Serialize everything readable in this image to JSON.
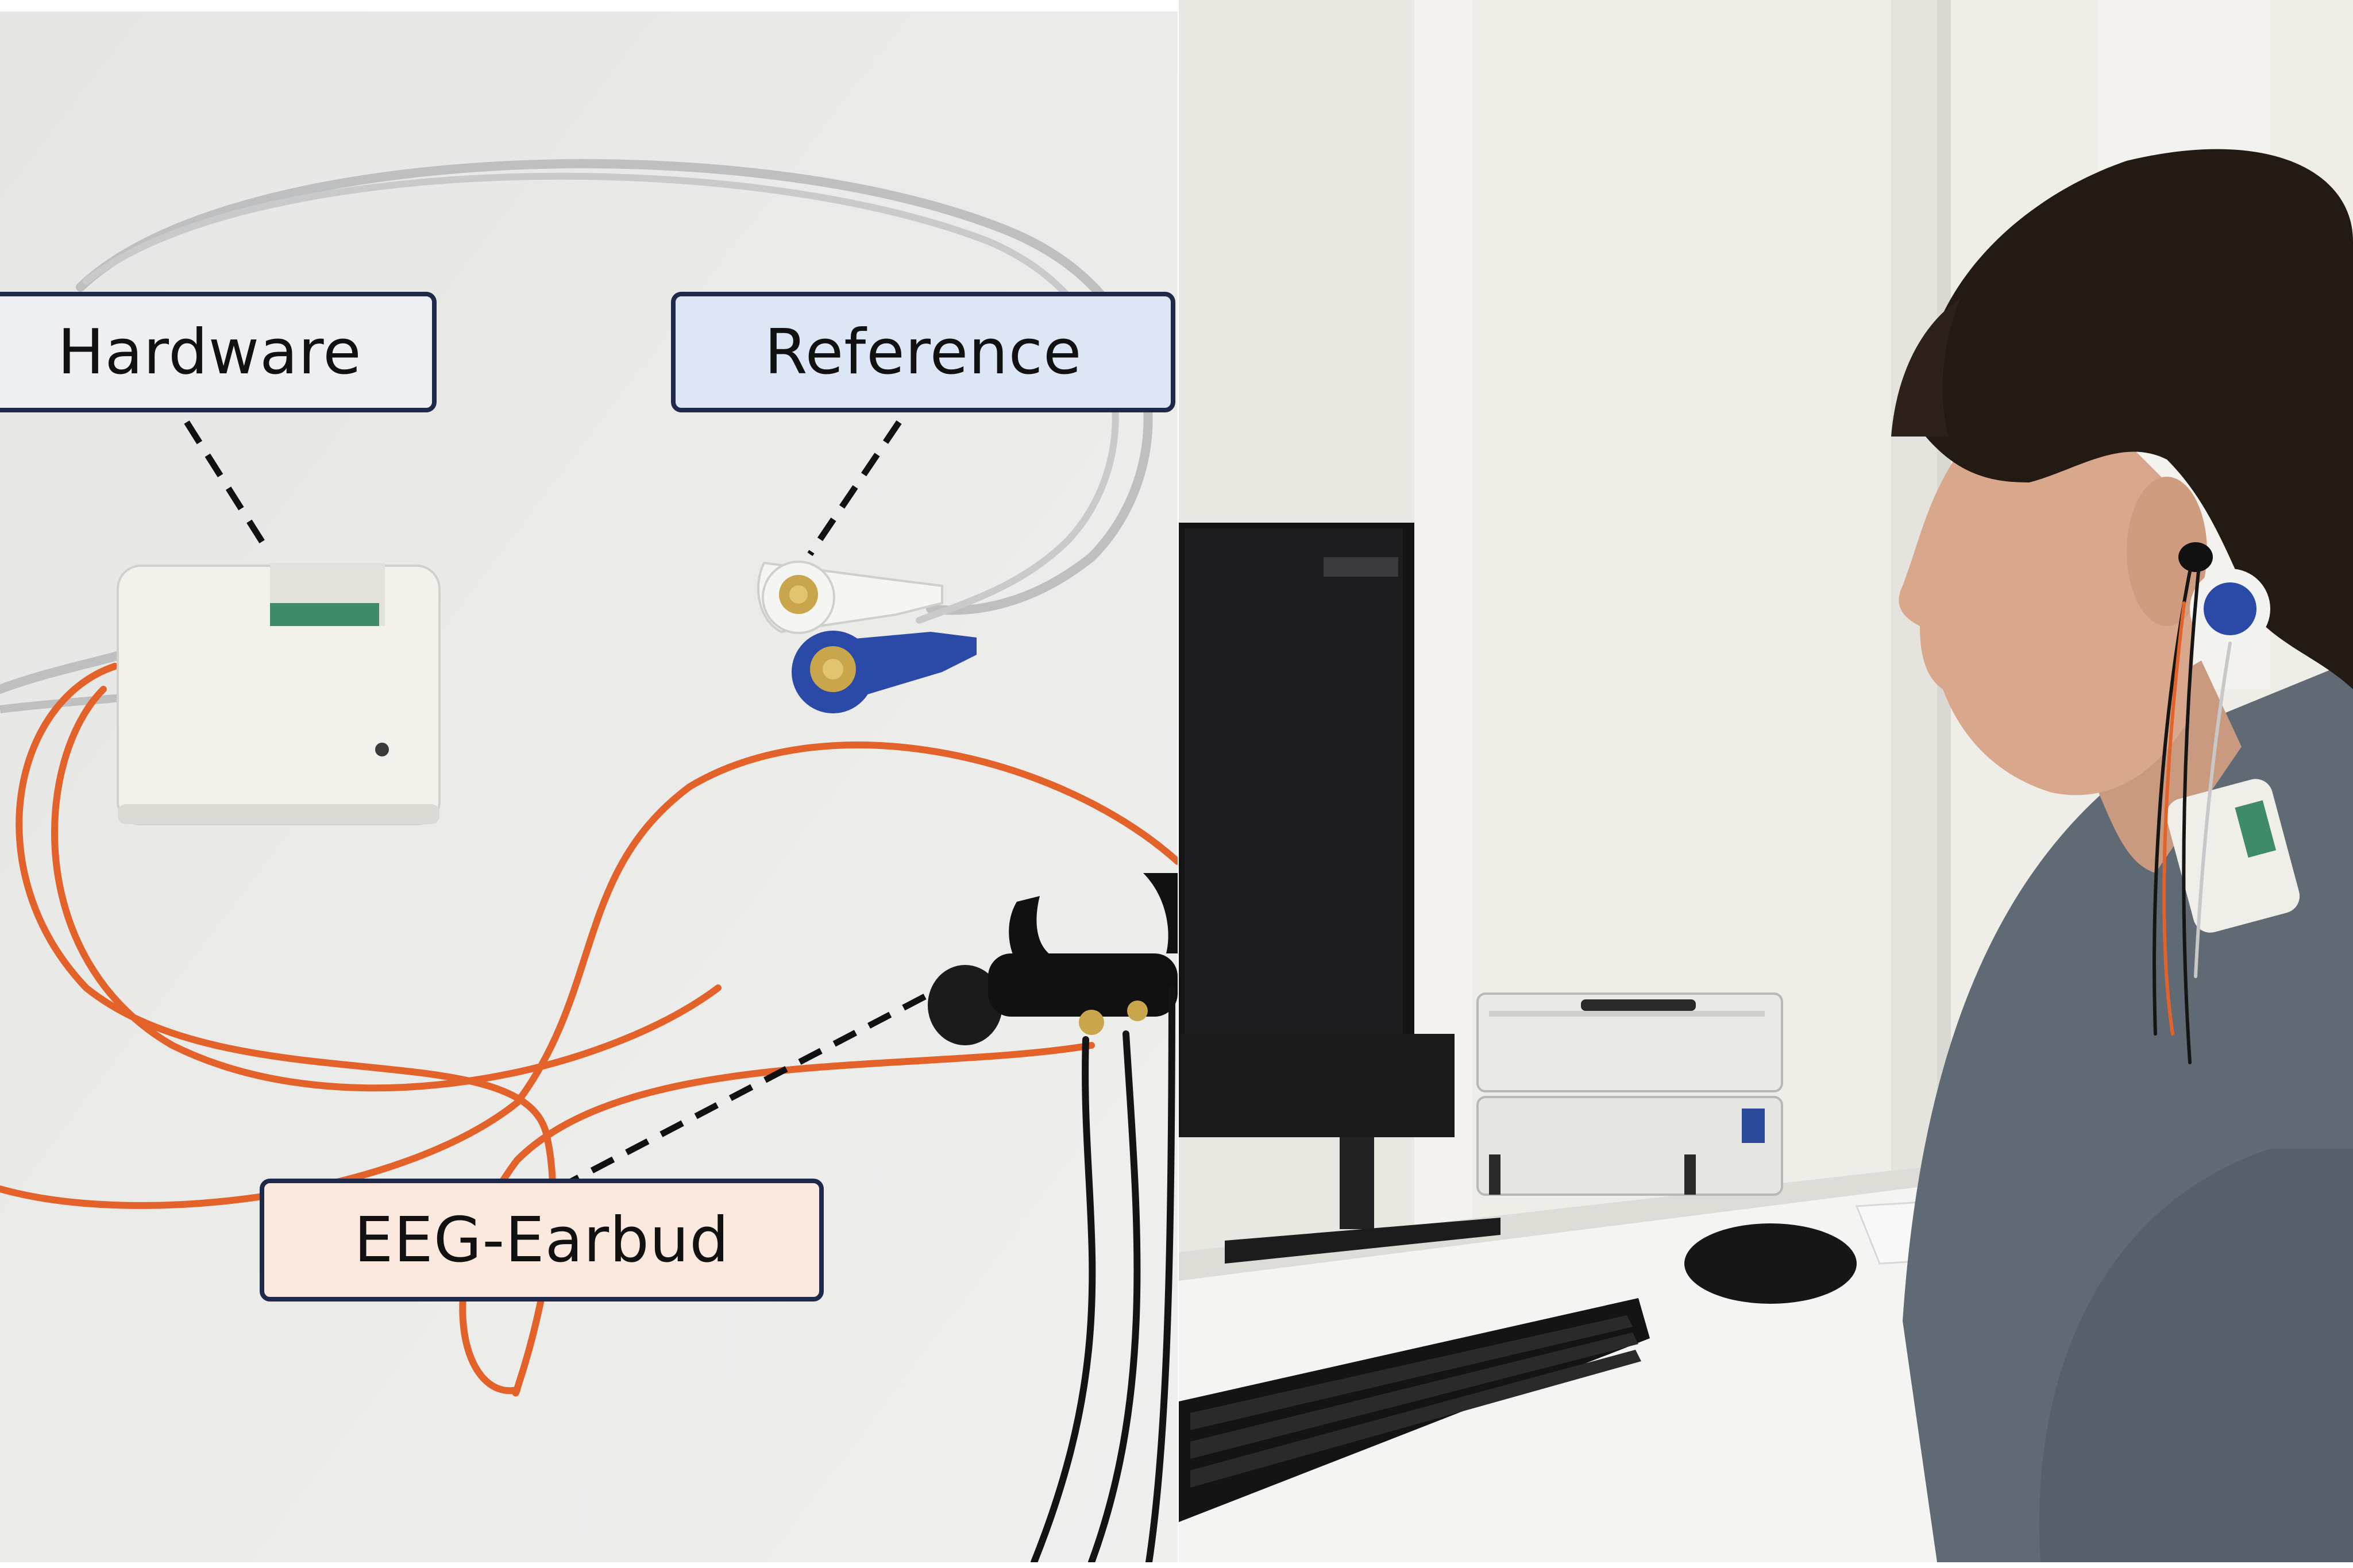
{
  "labels": {
    "hardware": "Hardware",
    "reference": "Reference",
    "eeg_earbud": "EEG-Earbud"
  },
  "colors": {
    "hardware_box": "#eeeff2",
    "reference_box": "#dce6f5",
    "eeg_box": "#fbe8de",
    "box_border": "#1f2a4a",
    "orange_cable": "#e2622a",
    "grey_cable": "#bdbfc1",
    "blue_snap": "#2b4aa8",
    "gold_contact": "#c9a64b"
  },
  "icons": {
    "hardware_module": "white-3d-printed-box-with-pcb",
    "reference_electrodes": "snap-electrodes-white-and-blue",
    "earbud": "black-eeg-earbud",
    "monitor": "computer-monitor",
    "keyboard": "keyboard",
    "mouse": "computer-mouse",
    "amplifier": "stacked-amplifier-units",
    "person": "person-wearing-eeg-earbud"
  }
}
